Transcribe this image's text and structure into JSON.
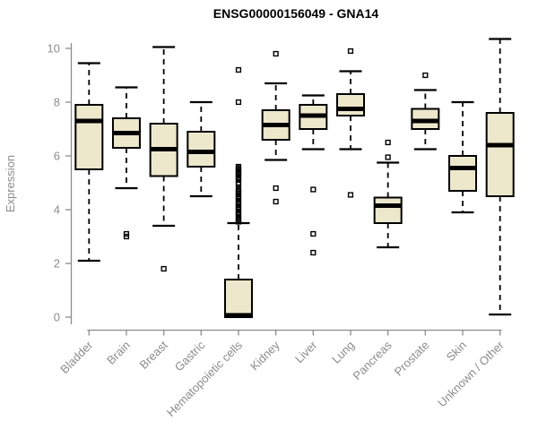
{
  "title": "ENSG00000156049 - GNA14",
  "chart_data": {
    "type": "boxplot",
    "title": "ENSG00000156049 - GNA14",
    "xlabel": "",
    "ylabel": "Expression",
    "ylim": [
      0,
      10
    ],
    "yticks": [
      0,
      2,
      4,
      6,
      8,
      10
    ],
    "grid": false,
    "legend": null,
    "categories": [
      "Bladder",
      "Brain",
      "Breast",
      "Gastric",
      "Hematopoietic cells",
      "Kidney",
      "Liver",
      "Lung",
      "Pancreas",
      "Prostate",
      "Skin",
      "Unknown / Other"
    ],
    "series": [
      {
        "name": "Bladder",
        "whisker_low": 2.1,
        "q1": 5.5,
        "median": 7.3,
        "q3": 7.9,
        "whisker_high": 9.45,
        "outliers": []
      },
      {
        "name": "Brain",
        "whisker_low": 4.8,
        "q1": 6.3,
        "median": 6.85,
        "q3": 7.4,
        "whisker_high": 8.55,
        "outliers": [
          3.0,
          3.1
        ]
      },
      {
        "name": "Breast",
        "whisker_low": 3.4,
        "q1": 5.25,
        "median": 6.25,
        "q3": 7.2,
        "whisker_high": 10.05,
        "outliers": [
          1.8
        ]
      },
      {
        "name": "Gastric",
        "whisker_low": 4.5,
        "q1": 5.6,
        "median": 6.15,
        "q3": 6.9,
        "whisker_high": 8.0,
        "outliers": []
      },
      {
        "name": "Hematopoietic cells",
        "whisker_low": null,
        "q1": 0.0,
        "median": 0.07,
        "q3": 1.4,
        "whisker_high": 3.5,
        "outliers": [
          9.2,
          8.0,
          5.6,
          5.55,
          5.5,
          5.45,
          5.4,
          5.35,
          5.3,
          5.2,
          5.15,
          5.1,
          5.0,
          4.95,
          4.75,
          4.7,
          4.65,
          4.6,
          4.5,
          4.45,
          4.4,
          4.3,
          4.25,
          4.2,
          4.1,
          4.05,
          4.0,
          3.9,
          3.85,
          3.8,
          3.7,
          3.65,
          3.6,
          3.55
        ]
      },
      {
        "name": "Kidney",
        "whisker_low": 5.85,
        "q1": 6.6,
        "median": 7.15,
        "q3": 7.7,
        "whisker_high": 8.7,
        "outliers": [
          9.8,
          4.8,
          4.3
        ]
      },
      {
        "name": "Liver",
        "whisker_low": 6.25,
        "q1": 7.0,
        "median": 7.5,
        "q3": 7.9,
        "whisker_high": 8.25,
        "outliers": [
          4.75,
          3.1,
          2.4
        ]
      },
      {
        "name": "Lung",
        "whisker_low": 6.25,
        "q1": 7.5,
        "median": 7.75,
        "q3": 8.3,
        "whisker_high": 9.15,
        "outliers": [
          9.9,
          4.55
        ]
      },
      {
        "name": "Pancreas",
        "whisker_low": 2.6,
        "q1": 3.5,
        "median": 4.15,
        "q3": 4.45,
        "whisker_high": 5.75,
        "outliers": [
          6.5,
          5.95
        ]
      },
      {
        "name": "Prostate",
        "whisker_low": 6.25,
        "q1": 7.0,
        "median": 7.3,
        "q3": 7.75,
        "whisker_high": 8.45,
        "outliers": [
          9.0
        ]
      },
      {
        "name": "Skin",
        "whisker_low": 3.9,
        "q1": 4.7,
        "median": 5.55,
        "q3": 6.0,
        "whisker_high": 8.0,
        "outliers": []
      },
      {
        "name": "Unknown / Other",
        "whisker_low": 0.1,
        "q1": 4.5,
        "median": 6.4,
        "q3": 7.6,
        "whisker_high": 10.35,
        "outliers": []
      }
    ],
    "colors": {
      "box_fill": "#EDE7CC",
      "box_border": "#000000",
      "median": "#000000",
      "whisker": "#000000",
      "outlier": "#000000",
      "axis": "#8C8C8C",
      "tick_label": "#8C8C8C",
      "title": "#000000",
      "background": "#FFFFFF"
    }
  }
}
